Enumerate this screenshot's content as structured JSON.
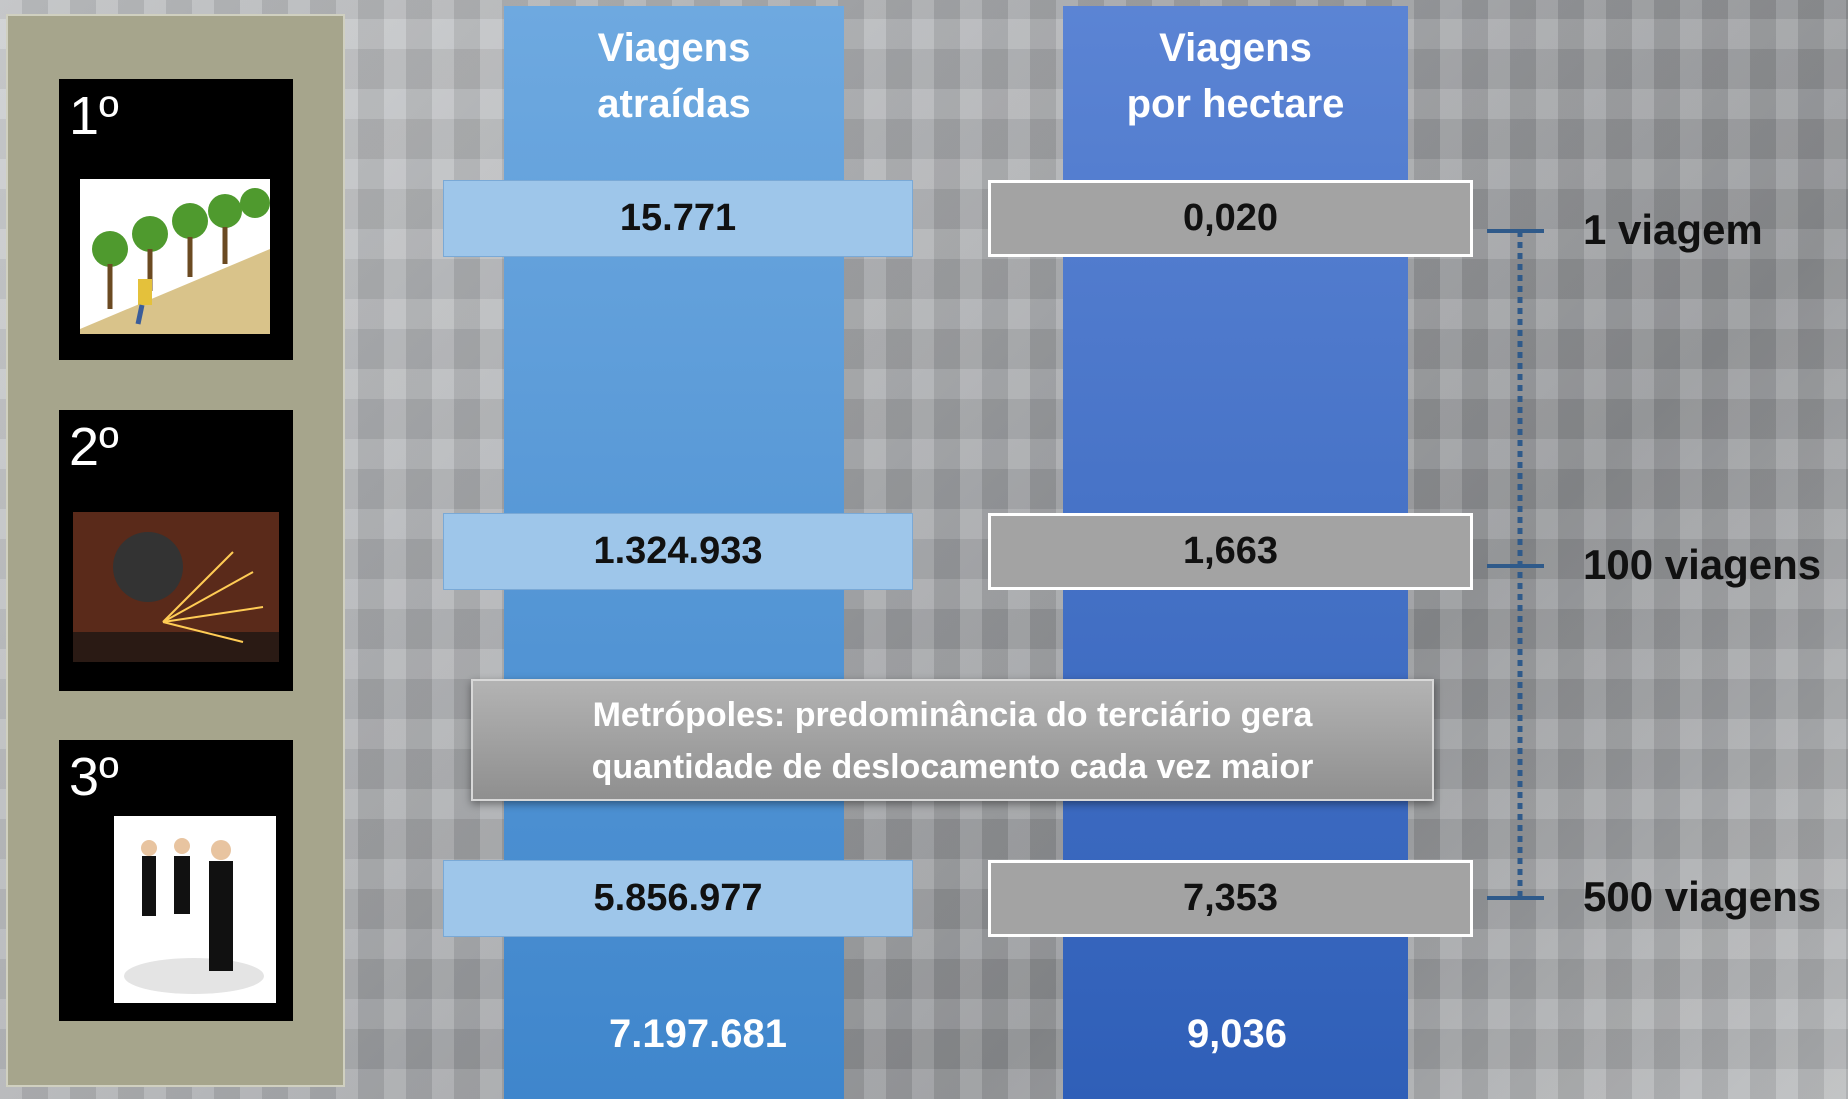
{
  "levels": [
    "1º",
    "2º",
    "3º"
  ],
  "columns": [
    {
      "header": [
        "Viagens",
        "atraídas"
      ]
    },
    {
      "header": [
        "Viagens",
        "por hectare"
      ]
    }
  ],
  "rows": [
    [
      "15.771",
      "0,020"
    ],
    [
      "1.324.933",
      "1,663"
    ],
    [
      "5.856.977",
      "7,353"
    ]
  ],
  "totals": [
    "7.197.681",
    "9,036"
  ],
  "annotation": [
    "Metrópoles: predominância do terciário gera",
    "quantidade de deslocamento cada vez maior"
  ],
  "scale": [
    "1 viagem",
    "100 viagens",
    "500 viagens"
  ]
}
